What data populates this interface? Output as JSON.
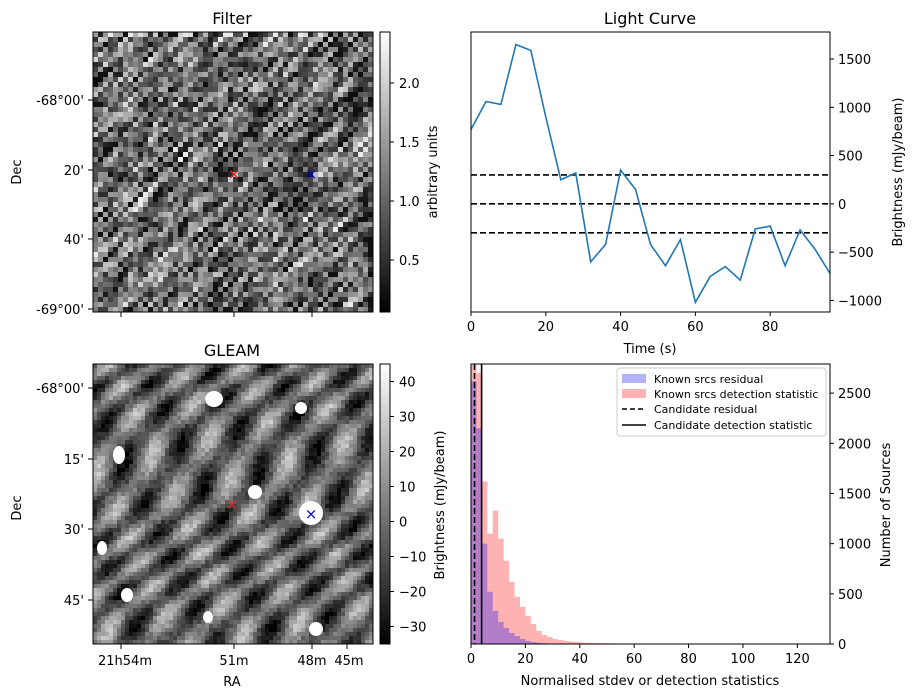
{
  "chart_data": [
    {
      "id": "filter",
      "type": "heatmap",
      "title": "Filter",
      "ylabel": "Dec",
      "y_tick_labels": [
        "-68°00'",
        "20'",
        "40'",
        "-69°00'"
      ],
      "colorbar": {
        "label": "arbitrary units",
        "ticks": [
          "0.5",
          "1.0",
          "1.5",
          "2.0"
        ],
        "range": [
          0.1,
          2.4
        ],
        "cmap": "gray"
      },
      "markers": [
        {
          "name": "red-cross",
          "symbol": "×",
          "color": "#e8231f"
        },
        {
          "name": "blue-cross",
          "symbol": "×",
          "color": "#0000cc"
        }
      ]
    },
    {
      "id": "light-curve",
      "type": "line",
      "title": "Light Curve",
      "xlabel": "Time (s)",
      "ylabel": "Brightness (mJy/beam)",
      "xlim": [
        0,
        96
      ],
      "ylim": [
        -1120,
        1780
      ],
      "x_ticks": [
        0,
        20,
        40,
        60,
        80
      ],
      "y_ticks": [
        -1000,
        -500,
        0,
        500,
        1000,
        1500
      ],
      "series": [
        {
          "name": "light curve",
          "color": "#1f77b4",
          "x": [
            0,
            4,
            8,
            12,
            16,
            20,
            24,
            28,
            32,
            36,
            40,
            44,
            48,
            52,
            56,
            60,
            64,
            68,
            72,
            76,
            80,
            84,
            88,
            92,
            96
          ],
          "y": [
            770,
            1060,
            1030,
            1650,
            1590,
            900,
            250,
            320,
            -600,
            -420,
            350,
            150,
            -420,
            -640,
            -370,
            -1020,
            -750,
            -650,
            -790,
            -260,
            -230,
            -640,
            -270,
            -470,
            -720
          ]
        }
      ],
      "hlines": [
        {
          "y": 300,
          "style": "dashed",
          "color": "#000000"
        },
        {
          "y": 0,
          "style": "dashed",
          "color": "#000000"
        },
        {
          "y": -300,
          "style": "dashed",
          "color": "#000000"
        }
      ]
    },
    {
      "id": "gleam",
      "type": "heatmap",
      "title": "GLEAM",
      "xlabel": "RA",
      "ylabel": "Dec",
      "x_tick_labels": [
        "21h54m",
        "51m",
        "48m",
        "45m"
      ],
      "y_tick_labels": [
        "-68°00'",
        "15'",
        "30'",
        "45'"
      ],
      "colorbar": {
        "label": "Brightness (mJy/beam)",
        "ticks": [
          "−30",
          "−20",
          "−10",
          "0",
          "10",
          "20",
          "30",
          "40"
        ],
        "range": [
          -35,
          45
        ],
        "cmap": "gray"
      },
      "markers": [
        {
          "name": "red-cross",
          "symbol": "×",
          "color": "#e8231f"
        },
        {
          "name": "blue-cross",
          "symbol": "×",
          "color": "#0000cc"
        }
      ]
    },
    {
      "id": "histogram",
      "type": "bar",
      "xlabel": "Normalised stdev or detection statistics",
      "ylabel": "Number of Sources",
      "xlim": [
        0,
        132
      ],
      "ylim": [
        0,
        2790
      ],
      "x_ticks": [
        0,
        20,
        40,
        60,
        80,
        100,
        120
      ],
      "y_ticks": [
        0,
        500,
        1000,
        1500,
        2000,
        2500
      ],
      "bin_width": 2,
      "series": [
        {
          "name": "Known srcs residual",
          "color": "#0000ff",
          "opacity": 0.3,
          "bin_starts": [
            0,
            2,
            4,
            6,
            8,
            10,
            12,
            14,
            16,
            18,
            20,
            22,
            24,
            26,
            28,
            30
          ],
          "values": [
            2620,
            2150,
            1000,
            520,
            330,
            220,
            160,
            110,
            80,
            50,
            30,
            20,
            12,
            8,
            5,
            3
          ]
        },
        {
          "name": "Known srcs detection statistic",
          "color": "#ff0000",
          "opacity": 0.3,
          "bin_starts": [
            0,
            2,
            4,
            6,
            8,
            10,
            12,
            14,
            16,
            18,
            20,
            22,
            24,
            26,
            28,
            30,
            32,
            34,
            36,
            38,
            40,
            42,
            44,
            46,
            48,
            50,
            52,
            54,
            56,
            58,
            60,
            62,
            64,
            66,
            68,
            70,
            72,
            74,
            76,
            78,
            80,
            82,
            84,
            86,
            88,
            90,
            92,
            94,
            96,
            98,
            100,
            102,
            104,
            106,
            108,
            110,
            112,
            114,
            116,
            118,
            120,
            122,
            124,
            126,
            128
          ],
          "values": [
            2780,
            2700,
            1620,
            1100,
            1330,
            1050,
            830,
            620,
            470,
            370,
            280,
            200,
            130,
            90,
            70,
            50,
            40,
            30,
            25,
            20,
            15,
            12,
            10,
            9,
            8,
            7,
            6,
            5,
            5,
            4,
            4,
            3,
            3,
            3,
            3,
            2,
            2,
            2,
            2,
            2,
            2,
            2,
            2,
            2,
            2,
            1,
            1,
            1,
            1,
            1,
            1,
            1,
            1,
            1,
            1,
            1,
            1,
            1,
            1,
            1,
            1,
            1,
            1,
            1,
            1
          ]
        }
      ],
      "vlines": [
        {
          "name": "Candidate residual",
          "x": 1.3,
          "style": "dashed",
          "color": "#000000"
        },
        {
          "name": "Candidate detection statistic",
          "x": 3.9,
          "style": "solid",
          "color": "#000000"
        }
      ],
      "legend": {
        "location": "top-right",
        "entries": [
          "Known srcs residual",
          "Known srcs detection statistic",
          "Candidate residual",
          "Candidate detection statistic"
        ]
      }
    }
  ]
}
